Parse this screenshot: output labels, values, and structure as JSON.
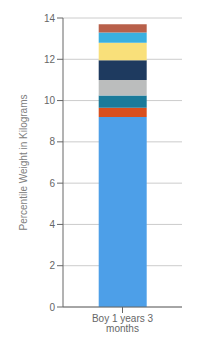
{
  "chart_data": {
    "type": "bar",
    "stacked": true,
    "categories": [
      "Boy 1 years 3 months"
    ],
    "series": [
      {
        "color": "#4D9FE8",
        "values": [
          9.2
        ]
      },
      {
        "color": "#D94F1E",
        "values": [
          0.45
        ]
      },
      {
        "color": "#1A7A9A",
        "values": [
          0.6
        ]
      },
      {
        "color": "#BBBDBD",
        "values": [
          0.75
        ]
      },
      {
        "color": "#1E3A5F",
        "values": [
          0.95
        ]
      },
      {
        "color": "#F9E07A",
        "values": [
          0.85
        ]
      },
      {
        "color": "#3AB0E0",
        "values": [
          0.5
        ]
      },
      {
        "color": "#B8604A",
        "values": [
          0.4
        ]
      }
    ],
    "ylabel": "Percentile Weight in Kilograms",
    "ylim": [
      0,
      14
    ],
    "yticks": [
      0,
      2,
      4,
      6,
      8,
      10,
      12,
      14
    ],
    "grid": true
  }
}
